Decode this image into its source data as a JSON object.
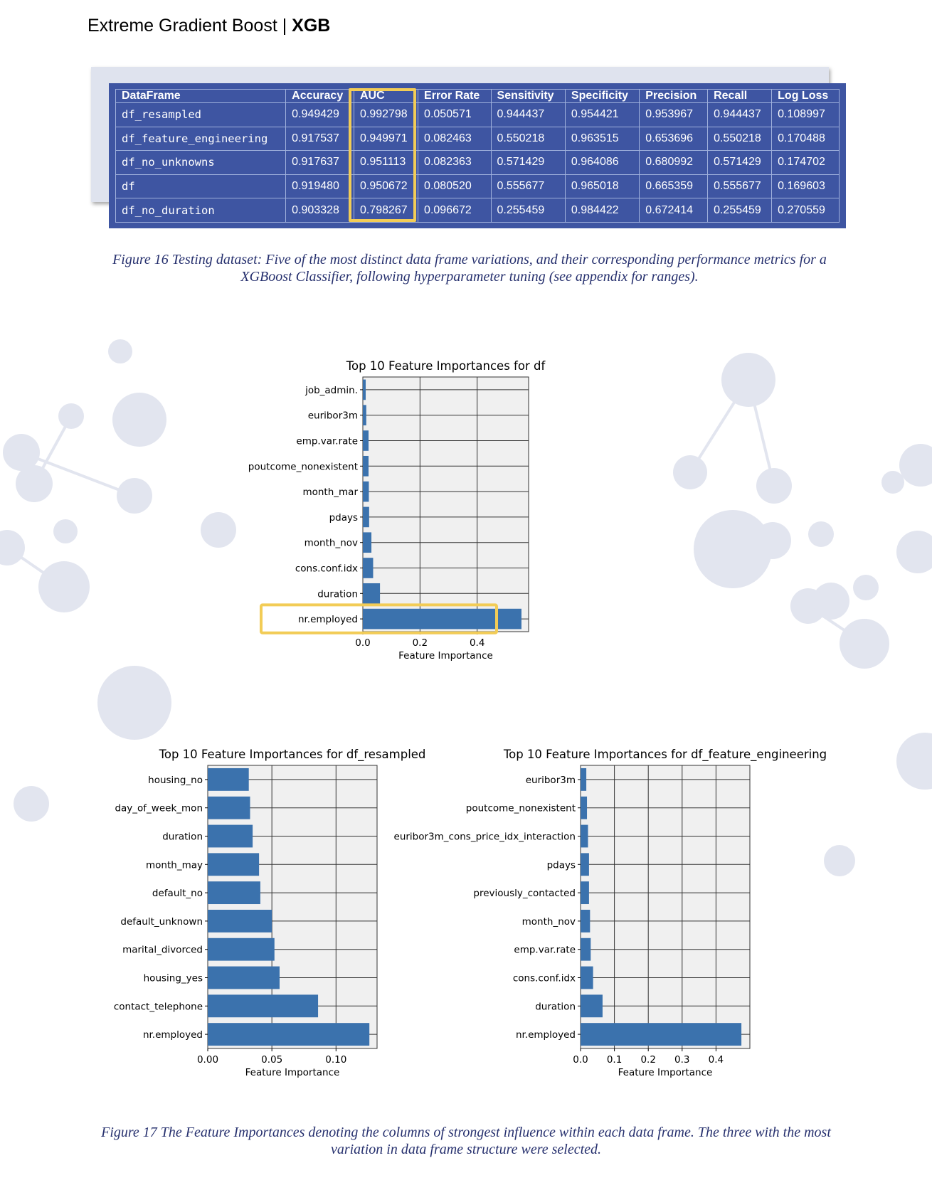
{
  "header": {
    "title_prefix": "Extreme Gradient Boost | ",
    "title_bold": "XGB"
  },
  "table": {
    "columns": [
      "DataFrame",
      "Accuracy",
      "AUC",
      "Error Rate",
      "Sensitivity",
      "Specificity",
      "Precision",
      "Recall",
      "Log Loss"
    ],
    "rows": [
      [
        "df_resampled",
        "0.949429",
        "0.992798",
        "0.050571",
        "0.944437",
        "0.954421",
        "0.953967",
        "0.944437",
        "0.108997"
      ],
      [
        "df_feature_engineering",
        "0.917537",
        "0.949971",
        "0.082463",
        "0.550218",
        "0.963515",
        "0.653696",
        "0.550218",
        "0.170488"
      ],
      [
        "df_no_unknowns",
        "0.917637",
        "0.951113",
        "0.082363",
        "0.571429",
        "0.964086",
        "0.680992",
        "0.571429",
        "0.174702"
      ],
      [
        "df",
        "0.919480",
        "0.950672",
        "0.080520",
        "0.555677",
        "0.965018",
        "0.665359",
        "0.555677",
        "0.169603"
      ],
      [
        "df_no_duration",
        "0.903328",
        "0.798267",
        "0.096672",
        "0.255459",
        "0.984422",
        "0.672414",
        "0.255459",
        "0.270559"
      ]
    ],
    "highlight_column": "AUC",
    "header_bg": "#3e55a2",
    "highlight_color": "#f2cc56"
  },
  "captions": {
    "figure16": "Figure 16 Testing dataset: Five of the most distinct data frame variations, and their corresponding performance metrics for a XGBoost Classifier, following hyperparameter tuning (see appendix for ranges).",
    "figure17": "Figure 17 The Feature Importances denoting the columns of strongest influence within each data frame. The three with the most variation in data frame structure were selected."
  },
  "chart_data": [
    {
      "type": "bar",
      "orientation": "horizontal",
      "title": "Top 10 Feature Importances for df",
      "xlabel": "Feature Importance",
      "ylabel": "",
      "categories": [
        "job_admin.",
        "euribor3m",
        "emp.var.rate",
        "poutcome_nonexistent",
        "month_mar",
        "pdays",
        "month_nov",
        "cons.conf.idx",
        "duration",
        "nr.employed"
      ],
      "values": [
        0.01,
        0.012,
        0.02,
        0.02,
        0.021,
        0.022,
        0.03,
        0.036,
        0.06,
        0.555
      ],
      "xlim": [
        0,
        0.58
      ],
      "xticks": [
        "0.0",
        "0.2",
        "0.4"
      ],
      "highlight_category": "nr.employed",
      "grid": true,
      "bar_color": "#3b72ad"
    },
    {
      "type": "bar",
      "orientation": "horizontal",
      "title": "Top 10 Feature Importances for df_resampled",
      "xlabel": "Feature Importance",
      "ylabel": "",
      "categories": [
        "housing_no",
        "day_of_week_mon",
        "duration",
        "month_may",
        "default_no",
        "default_unknown",
        "marital_divorced",
        "housing_yes",
        "contact_telephone",
        "nr.employed"
      ],
      "values": [
        0.032,
        0.033,
        0.035,
        0.04,
        0.041,
        0.05,
        0.052,
        0.056,
        0.086,
        0.126
      ],
      "xlim": [
        0,
        0.132
      ],
      "xticks": [
        "0.00",
        "0.05",
        "0.10"
      ],
      "grid": true,
      "bar_color": "#3b72ad"
    },
    {
      "type": "bar",
      "orientation": "horizontal",
      "title": "Top 10 Feature Importances for df_feature_engineering",
      "xlabel": "Feature Importance",
      "ylabel": "",
      "categories": [
        "euribor3m",
        "poutcome_nonexistent",
        "euribor3m_cons_price_idx_interaction",
        "pdays",
        "previously_contacted",
        "month_nov",
        "emp.var.rate",
        "cons.conf.idx",
        "duration",
        "nr.employed"
      ],
      "values": [
        0.017,
        0.019,
        0.022,
        0.025,
        0.025,
        0.028,
        0.03,
        0.037,
        0.065,
        0.475
      ],
      "xlim": [
        0,
        0.5
      ],
      "xticks": [
        "0.0",
        "0.1",
        "0.2",
        "0.3",
        "0.4"
      ],
      "grid": true,
      "bar_color": "#3b72ad"
    }
  ]
}
